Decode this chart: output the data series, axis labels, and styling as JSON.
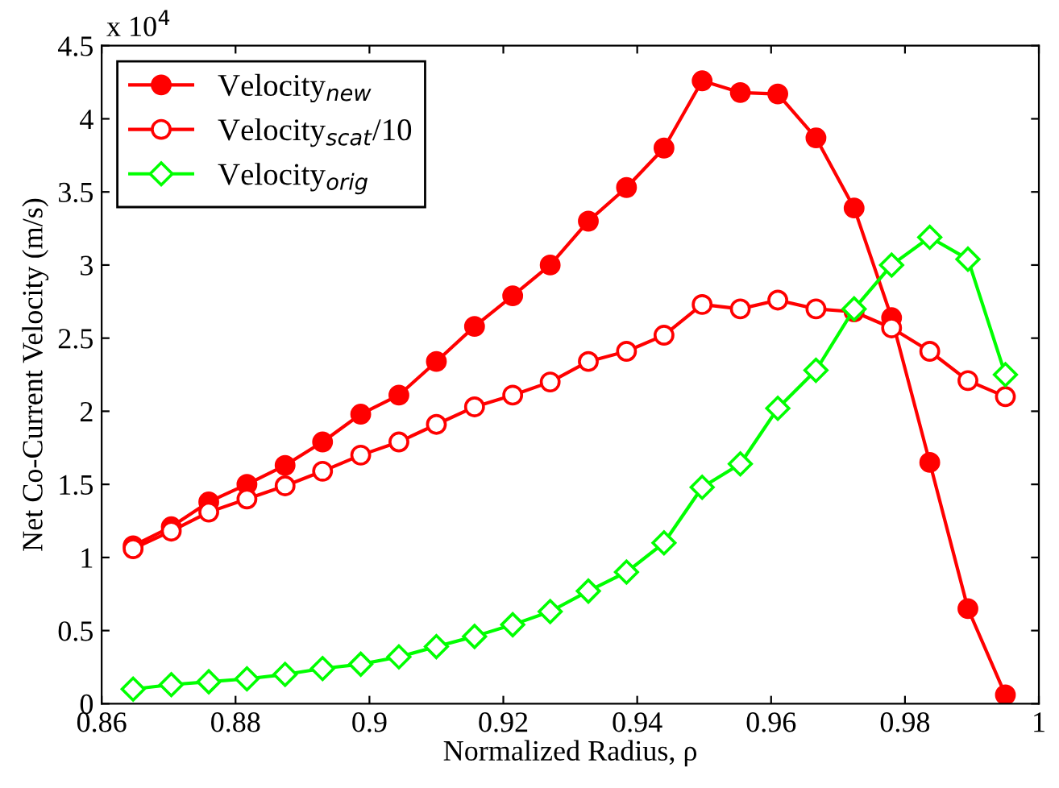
{
  "chart_data": {
    "type": "line",
    "xlabel": "Normalized Radius, ρ",
    "ylabel": "Net Co-Current Velocity (m/s)",
    "annotations": [
      "x 10$^{4}$"
    ],
    "x": [
      0.8647,
      0.8704,
      0.876,
      0.8817,
      0.8874,
      0.893,
      0.8987,
      0.9044,
      0.91,
      0.9157,
      0.9214,
      0.927,
      0.9327,
      0.9384,
      0.944,
      0.9497,
      0.9554,
      0.961,
      0.9667,
      0.9724,
      0.978,
      0.9837,
      0.9894,
      0.995
    ],
    "series": [
      {
        "name": "Velocity$_{new}$",
        "color": "#ff0000",
        "marker": "circle",
        "values": [
          1.08,
          1.21,
          1.38,
          1.5,
          1.63,
          1.79,
          1.98,
          2.11,
          2.34,
          2.58,
          2.79,
          3.0,
          3.3,
          3.53,
          3.8,
          4.26,
          4.18,
          4.17,
          3.87,
          3.39,
          2.64,
          1.65,
          0.65,
          0.06
        ]
      },
      {
        "name": "Velocity$_{scat}$/10",
        "color": "#ff0000",
        "marker": "circle",
        "values": [
          1.06,
          1.18,
          1.31,
          1.4,
          1.49,
          1.59,
          1.7,
          1.79,
          1.91,
          2.03,
          2.11,
          2.2,
          2.34,
          2.41,
          2.52,
          2.73,
          2.7,
          2.76,
          2.7,
          2.68,
          2.57,
          2.41,
          2.21,
          2.1
        ]
      },
      {
        "name": "Velocity$_{orig}$",
        "color": "#00ff00",
        "marker": "diamond",
        "values": [
          0.1,
          0.13,
          0.15,
          0.17,
          0.2,
          0.24,
          0.27,
          0.32,
          0.39,
          0.46,
          0.54,
          0.63,
          0.77,
          0.9,
          1.1,
          1.48,
          1.64,
          2.02,
          2.28,
          2.7,
          3.0,
          3.19,
          3.04,
          2.25
        ]
      }
    ],
    "xlim": [
      0.86,
      1.0
    ],
    "xticks": [
      0.86,
      0.88,
      {
        "value": 0.9,
        "label": "0.9"
      },
      0.92,
      0.94,
      0.96,
      0.98,
      {
        "value": 1.0,
        "label": "1"
      }
    ],
    "ylim": [
      0,
      4.5
    ],
    "yticks": [
      0,
      0.5,
      1,
      1.5,
      2,
      2.5,
      3,
      3.5,
      4,
      4.5
    ],
    "grid": false,
    "legend": "top left",
    "line_style": "solid"
  }
}
